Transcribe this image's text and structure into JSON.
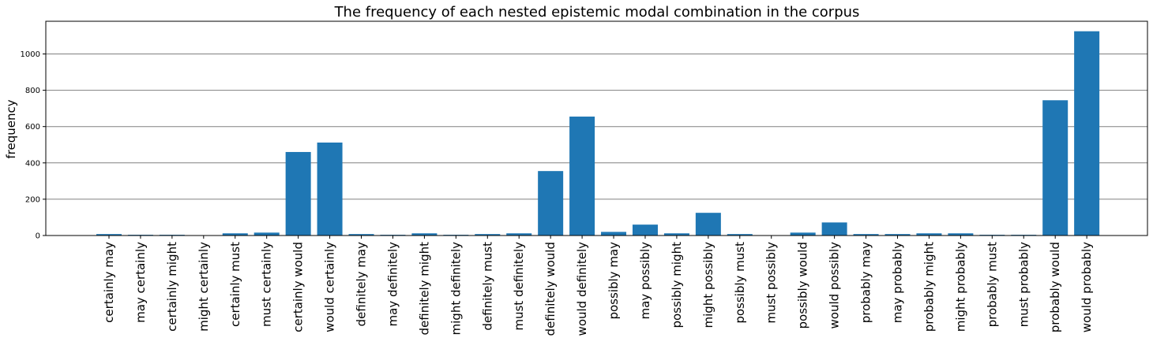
{
  "chart_data": {
    "type": "bar",
    "title": "The frequency of each nested epistemic modal combination in the corpus",
    "xlabel": "",
    "ylabel": "frequency",
    "ylim": [
      0,
      1180
    ],
    "yticks": [
      0,
      200,
      400,
      600,
      800,
      1000
    ],
    "grid": "horizontal",
    "bar_color": "#1f77b4",
    "gridline_color": "#808080",
    "categories": [
      "certainly may",
      "may certainly",
      "certainly might",
      "might certainly",
      "certainly must",
      "must certainly",
      "certainly would",
      "would certainly",
      "definitely may",
      "may definitely",
      "definitely might",
      "might definitely",
      "definitely must",
      "must definitely",
      "definitely would",
      "would definitely",
      "possibly may",
      "may possibly",
      "possibly might",
      "might possibly",
      "possibly must",
      "must possibly",
      "possibly would",
      "would possibly",
      "probably may",
      "may probably",
      "probably might",
      "might probably",
      "probably must",
      "must probably",
      "probably would",
      "would probably"
    ],
    "values": [
      8,
      4,
      4,
      0,
      12,
      16,
      460,
      512,
      8,
      4,
      12,
      4,
      8,
      12,
      355,
      655,
      20,
      60,
      12,
      125,
      8,
      0,
      16,
      72,
      8,
      8,
      12,
      12,
      4,
      4,
      745,
      1125
    ]
  }
}
